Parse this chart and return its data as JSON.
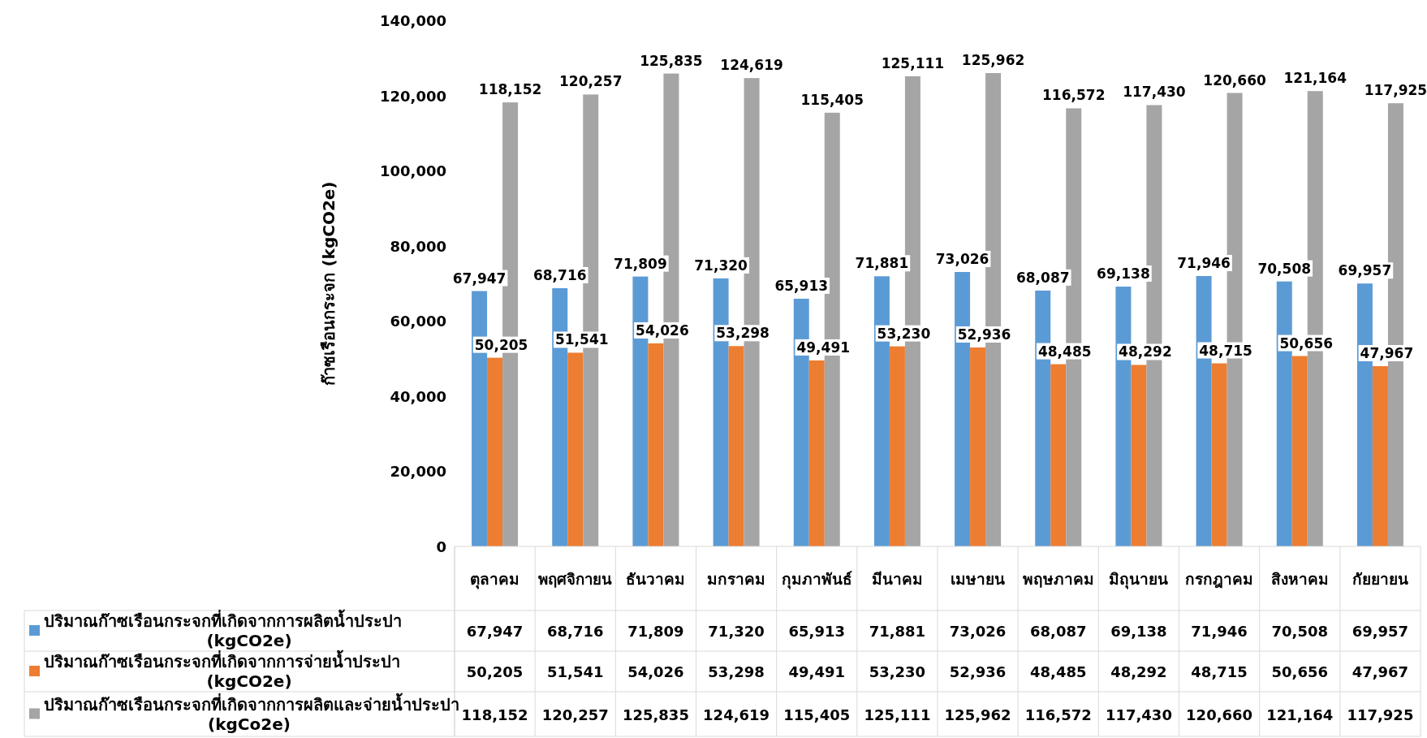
{
  "chart_data": {
    "type": "bar",
    "ylabel": "ก๊าซเรือนกระจก (kgCO2e)",
    "categories": [
      "ตุลาคม",
      "พฤศจิกายน",
      "ธันวาคม",
      "มกราคม",
      "กุมภาพันธ์",
      "มีนาคม",
      "เมษายน",
      "พฤษภาคม",
      "มิถุนายน",
      "กรกฎาคม",
      "สิงหาคม",
      "กัยยายน"
    ],
    "series": [
      {
        "name": "ปริมาณก๊าซเรือนกระจกที่เกิดจากการผลิตน้ำประปา (kgCO2e)",
        "color": "#5b9bd5",
        "values": [
          67947,
          68716,
          71809,
          71320,
          65913,
          71881,
          73026,
          68087,
          69138,
          71946,
          70508,
          69957
        ],
        "value_labels": [
          "67,947",
          "68,716",
          "71,809",
          "71,320",
          "65,913",
          "71,881",
          "73,026",
          "68,087",
          "69,138",
          "71,946",
          "70,508",
          "69,957"
        ]
      },
      {
        "name": "ปริมาณก๊าซเรือนกระจกที่เกิดจากการจ่ายน้ำประปา (kgCO2e)",
        "color": "#ed7d31",
        "values": [
          50205,
          51541,
          54026,
          53298,
          49491,
          53230,
          52936,
          48485,
          48292,
          48715,
          50656,
          47967
        ],
        "value_labels": [
          "50,205",
          "51,541",
          "54,026",
          "53,298",
          "49,491",
          "53,230",
          "52,936",
          "48,485",
          "48,292",
          "48,715",
          "50,656",
          "47,967"
        ]
      },
      {
        "name": "ปริมาณก๊าซเรือนกระจกที่เกิดจากการผลิตและจ่ายน้ำประปา (kgCo2e)",
        "color": "#a5a5a5",
        "values": [
          118152,
          120257,
          125835,
          124619,
          115405,
          125111,
          125962,
          116572,
          117430,
          120660,
          121164,
          117925
        ],
        "value_labels": [
          "118,152",
          "120,257",
          "125,835",
          "124,619",
          "115,405",
          "125,111",
          "125,962",
          "116,572",
          "117,430",
          "120,660",
          "121,164",
          "117,925"
        ]
      }
    ],
    "ylim": [
      0,
      140000
    ],
    "yticks": [
      0,
      {
        "value": 20000,
        "label": "20,000"
      },
      {
        "value": 40000,
        "label": "40,000"
      },
      {
        "value": 60000,
        "label": "60,000"
      },
      {
        "value": 80000,
        "label": "80,000"
      },
      {
        "value": 100000,
        "label": "100,000"
      },
      {
        "value": 120000,
        "label": "120,000"
      },
      {
        "value": 140000,
        "label": "140,000"
      }
    ],
    "grid": false,
    "legend": "bottom"
  }
}
